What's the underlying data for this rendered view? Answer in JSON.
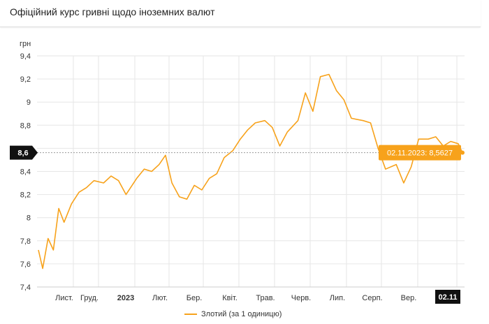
{
  "header": {
    "title": "Офіційний курс гривні щодо іноземних валют"
  },
  "colors": {
    "series": "#f7a21b",
    "tooltip_bg": "#f7a21b",
    "tooltip_text": "#ffffff",
    "marker_bg": "#111111",
    "grid": "#e6e6e6"
  },
  "chart_data": {
    "type": "line",
    "title": "",
    "xlabel": "",
    "ylabel": "грн",
    "ylim": [
      7.4,
      9.4
    ],
    "yticks": [
      "7,4",
      "7,6",
      "7,8",
      "8",
      "8,2",
      "8,4",
      "8,6",
      "8,8",
      "9",
      "9,2",
      "9,4"
    ],
    "xticks": [
      "Лист.",
      "Груд.",
      "2023",
      "Лют.",
      "Бер.",
      "Квіт.",
      "Трав.",
      "Черв.",
      "Лип.",
      "Серп.",
      "Вер.",
      "02.11"
    ],
    "series": [
      {
        "name": "Злотий (за 1 одиницю)",
        "x": [
          "2022-10-01",
          "2022-10-05",
          "2022-10-10",
          "2022-10-15",
          "2022-10-20",
          "2022-10-25",
          "2022-11-01",
          "2022-11-08",
          "2022-11-15",
          "2022-11-22",
          "2022-12-01",
          "2022-12-08",
          "2022-12-15",
          "2022-12-22",
          "2023-01-01",
          "2023-01-08",
          "2023-01-15",
          "2023-01-22",
          "2023-01-28",
          "2023-02-03",
          "2023-02-10",
          "2023-02-17",
          "2023-02-24",
          "2023-03-03",
          "2023-03-10",
          "2023-03-17",
          "2023-03-24",
          "2023-04-01",
          "2023-04-08",
          "2023-04-15",
          "2023-04-22",
          "2023-05-01",
          "2023-05-08",
          "2023-05-15",
          "2023-05-22",
          "2023-06-01",
          "2023-06-08",
          "2023-06-15",
          "2023-06-22",
          "2023-06-30",
          "2023-07-07",
          "2023-07-14",
          "2023-07-21",
          "2023-08-01",
          "2023-08-08",
          "2023-08-15",
          "2023-08-22",
          "2023-09-01",
          "2023-09-08",
          "2023-09-15",
          "2023-09-22",
          "2023-10-01",
          "2023-10-08",
          "2023-10-15",
          "2023-10-22",
          "2023-10-29",
          "2023-11-02"
        ],
        "y": [
          7.72,
          7.56,
          7.82,
          7.72,
          8.08,
          7.96,
          8.12,
          8.22,
          8.26,
          8.32,
          8.3,
          8.36,
          8.32,
          8.2,
          8.34,
          8.42,
          8.4,
          8.46,
          8.54,
          8.3,
          8.18,
          8.16,
          8.28,
          8.24,
          8.34,
          8.38,
          8.52,
          8.58,
          8.68,
          8.76,
          8.82,
          8.84,
          8.78,
          8.62,
          8.74,
          8.84,
          9.08,
          8.92,
          9.22,
          9.24,
          9.1,
          9.02,
          8.86,
          8.84,
          8.82,
          8.6,
          8.42,
          8.46,
          8.3,
          8.44,
          8.68,
          8.68,
          8.7,
          8.62,
          8.66,
          8.64,
          8.5627
        ]
      }
    ],
    "tooltip": {
      "date": "02.11.2023",
      "value": "8,5627",
      "label": "02.11.2023: 8,5627"
    },
    "marker_label": "8,6",
    "legend": {
      "placement": "bottom-center",
      "label": "Злотий (за 1 одиницю)"
    },
    "grid": true
  }
}
